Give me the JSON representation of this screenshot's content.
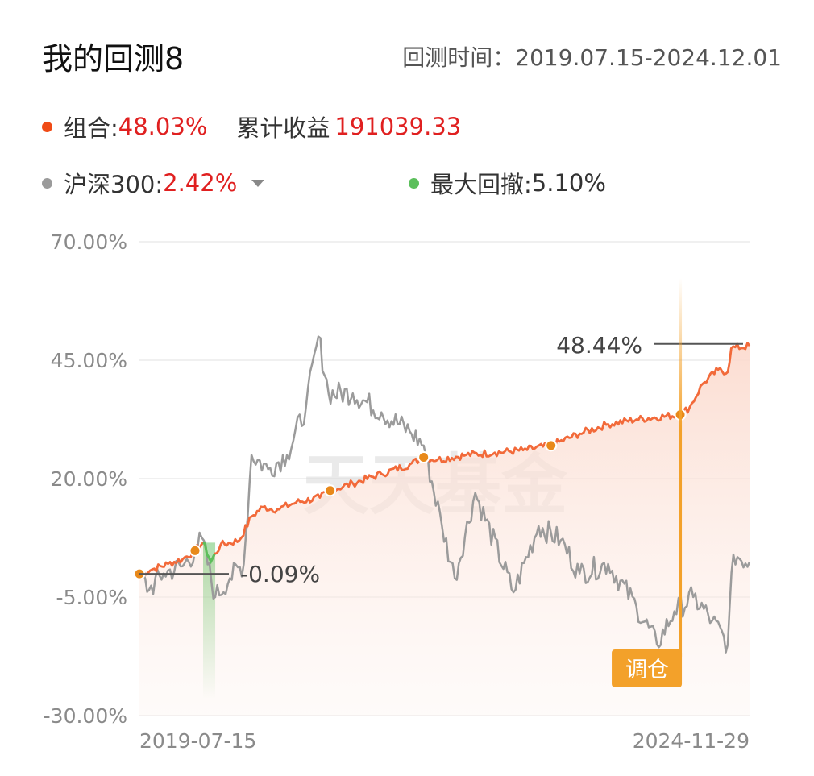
{
  "header": {
    "title": "我的回测8",
    "range_label": "回测时间：",
    "range_value": "2019.07.15-2024.12.01"
  },
  "legend": {
    "portfolio_label": "组合:",
    "portfolio_value": "48.03%",
    "cum_label": "累计收益",
    "cum_value": "191039.33",
    "benchmark_label": "沪深300:",
    "benchmark_value": "2.42%",
    "mdd_label": "最大回撤:",
    "mdd_value": "5.10%"
  },
  "colors": {
    "portfolio": "#f26a3a",
    "benchmark": "#9b9b9b",
    "drawdown": "#5cbf5c",
    "marker": "#e8891a",
    "tiaocang": "#f3a12a"
  },
  "watermark": "天天基金",
  "tiaocang_label": "调仓",
  "chart_data": {
    "type": "line",
    "ylim": [
      -30,
      70
    ],
    "yticks": [
      "70.00%",
      "45.00%",
      "20.00%",
      "-5.00%",
      "-30.00%"
    ],
    "ytick_values": [
      70,
      45,
      20,
      -5,
      -30
    ],
    "xlim": [
      "2019-07-15",
      "2024-11-29"
    ],
    "xticks": [
      "2019-07-15",
      "2024-11-29"
    ],
    "annotations": [
      {
        "text": "48.44%",
        "value": 48.44
      },
      {
        "text": "-0.09%",
        "value": -0.09
      }
    ],
    "rebalance_dates": [
      "2019-07-15",
      "2020-01-10",
      "2021-03-20",
      "2022-01-15",
      "2023-03-01",
      "2024-04-20"
    ],
    "series": [
      {
        "name": "组合",
        "points": [
          [
            "2019-07-15",
            -0.09
          ],
          [
            "2019-09-01",
            1.0
          ],
          [
            "2019-10-15",
            2.0
          ],
          [
            "2019-12-01",
            3.0
          ],
          [
            "2020-01-10",
            4.8
          ],
          [
            "2020-02-05",
            6.5
          ],
          [
            "2020-03-01",
            2.5
          ],
          [
            "2020-04-01",
            6.0
          ],
          [
            "2020-06-01",
            7.0
          ],
          [
            "2020-07-10",
            12.0
          ],
          [
            "2020-08-15",
            14.0
          ],
          [
            "2020-10-01",
            13.5
          ],
          [
            "2020-12-01",
            15.0
          ],
          [
            "2021-02-15",
            16.0
          ],
          [
            "2021-03-20",
            17.5
          ],
          [
            "2021-06-01",
            19.0
          ],
          [
            "2021-09-01",
            21.0
          ],
          [
            "2021-12-01",
            23.0
          ],
          [
            "2022-01-15",
            24.5
          ],
          [
            "2022-03-01",
            24.0
          ],
          [
            "2022-06-01",
            25.0
          ],
          [
            "2022-09-01",
            25.5
          ],
          [
            "2022-12-01",
            26.0
          ],
          [
            "2023-03-01",
            27.0
          ],
          [
            "2023-06-01",
            29.5
          ],
          [
            "2023-09-01",
            31.5
          ],
          [
            "2023-12-01",
            32.5
          ],
          [
            "2024-04-20",
            33.5
          ],
          [
            "2024-05-20",
            35.0
          ],
          [
            "2024-07-01",
            40.0
          ],
          [
            "2024-08-20",
            43.0
          ],
          [
            "2024-09-20",
            42.5
          ],
          [
            "2024-10-01",
            47.5
          ],
          [
            "2024-11-29",
            48.03
          ]
        ]
      },
      {
        "name": "沪深300",
        "points": [
          [
            "2019-07-15",
            -0.09
          ],
          [
            "2019-08-15",
            -3.5
          ],
          [
            "2019-10-01",
            0.0
          ],
          [
            "2019-12-01",
            1.5
          ],
          [
            "2020-01-10",
            4.5
          ],
          [
            "2020-02-01",
            7.5
          ],
          [
            "2020-03-15",
            -5.0
          ],
          [
            "2020-05-01",
            -1.0
          ],
          [
            "2020-06-15",
            2.0
          ],
          [
            "2020-07-10",
            25.0
          ],
          [
            "2020-09-01",
            22.0
          ],
          [
            "2020-11-01",
            25.0
          ],
          [
            "2021-01-01",
            35.0
          ],
          [
            "2021-02-10",
            50.0
          ],
          [
            "2021-03-15",
            38.0
          ],
          [
            "2021-06-01",
            38.0
          ],
          [
            "2021-09-01",
            34.0
          ],
          [
            "2021-12-01",
            30.0
          ],
          [
            "2022-01-15",
            27.0
          ],
          [
            "2022-03-15",
            10.0
          ],
          [
            "2022-04-25",
            -1.0
          ],
          [
            "2022-06-30",
            17.0
          ],
          [
            "2022-10-31",
            -4.0
          ],
          [
            "2023-01-20",
            10.0
          ],
          [
            "2023-04-01",
            7.0
          ],
          [
            "2023-06-01",
            0.0
          ],
          [
            "2023-09-01",
            2.0
          ],
          [
            "2023-12-01",
            -7.0
          ],
          [
            "2024-02-05",
            -15.0
          ],
          [
            "2024-04-01",
            -8.0
          ],
          [
            "2024-06-01",
            -5.0
          ],
          [
            "2024-08-01",
            -10.0
          ],
          [
            "2024-09-20",
            -15.0
          ],
          [
            "2024-10-08",
            4.0
          ],
          [
            "2024-11-29",
            2.42
          ]
        ]
      }
    ]
  }
}
